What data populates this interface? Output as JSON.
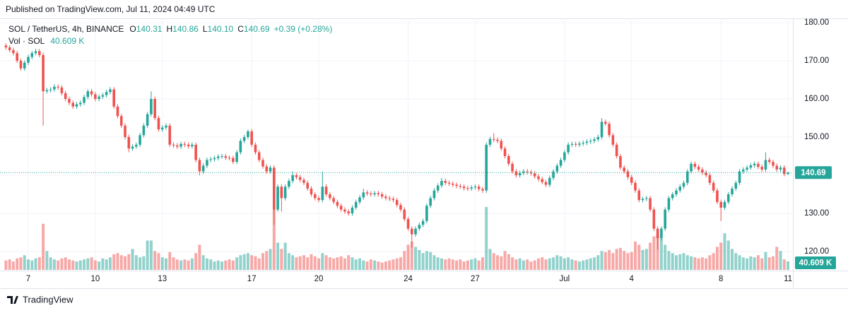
{
  "published": "Published on TradingView.com, Jul 11, 2024 04:49 UTC",
  "brand": "TradingView",
  "legend": {
    "symbol": "SOL / TetherUS, 4h, BINANCE",
    "keys": [
      "O",
      "H",
      "L",
      "C"
    ],
    "values": [
      "140.31",
      "140.86",
      "140.10",
      "140.69"
    ],
    "change": "+0.39 (+0.28%)",
    "volume_name": "Vol · SOL",
    "volume": "40.609 K"
  },
  "chart_data": {
    "type": "candlestick",
    "up_color": "#26a69a",
    "down_color": "#ef5350",
    "ylim": [
      115.19,
      181.11
    ],
    "yticks": [
      {
        "value": 120,
        "label": "120.00"
      },
      {
        "value": 130,
        "label": "130.00"
      },
      {
        "value": 140,
        "label": "140.00"
      },
      {
        "value": 150,
        "label": "150.00"
      },
      {
        "value": 160,
        "label": "160.00"
      },
      {
        "value": 170,
        "label": "170.00"
      },
      {
        "value": 180,
        "label": "180.00"
      }
    ],
    "xticks": [
      {
        "value": 6,
        "label": "7"
      },
      {
        "value": 24,
        "label": "10"
      },
      {
        "value": 42,
        "label": "13"
      },
      {
        "value": 66,
        "label": "17"
      },
      {
        "value": 84,
        "label": "20"
      },
      {
        "value": 108,
        "label": "24"
      },
      {
        "value": 126,
        "label": "27"
      },
      {
        "value": 150,
        "label": "Jul"
      },
      {
        "value": 168,
        "label": "4"
      },
      {
        "value": 192,
        "label": "8"
      },
      {
        "value": 210,
        "label": "11"
      }
    ],
    "grid": true,
    "vol_ylim": [
      0,
      1200
    ],
    "open": [
      174,
      173.5,
      172.8,
      172,
      170,
      168,
      169.5,
      171,
      172,
      172.5,
      171.5,
      162,
      162.3,
      162.5,
      163.2,
      163,
      161.5,
      160,
      159,
      158,
      158.6,
      159,
      160.5,
      162,
      161.2,
      160,
      160.6,
      161,
      161.8,
      162.5,
      158,
      155.5,
      153,
      150,
      147,
      147.5,
      148,
      150.5,
      153,
      156,
      160,
      155,
      152,
      152.5,
      153,
      148,
      147.8,
      147.5,
      148.2,
      148,
      147.6,
      148,
      144,
      141,
      142.5,
      144,
      144.2,
      144.5,
      144.9,
      145,
      144.6,
      144.5,
      143.5,
      146,
      149,
      150,
      151.5,
      148,
      146,
      144,
      142.3,
      141,
      142,
      131,
      137,
      134,
      137,
      138.5,
      140,
      139.5,
      138.8,
      138,
      136.5,
      135,
      134,
      133.5,
      137,
      135,
      134,
      133,
      132,
      131,
      130.5,
      130,
      131.5,
      133,
      134.2,
      135.5,
      135.2,
      135,
      135.3,
      135,
      134.4,
      134,
      133.8,
      133.5,
      132.2,
      131,
      128.5,
      126,
      124.5,
      126,
      127,
      128,
      132,
      134,
      136,
      137.3,
      138.5,
      138,
      137.8,
      137.5,
      137.2,
      137,
      136.6,
      136.5,
      136.8,
      137,
      136.4,
      136,
      148,
      149.5,
      149.3,
      149,
      147,
      145,
      143,
      141,
      140,
      140.6,
      141,
      140.8,
      140.5,
      139.7,
      139,
      138.2,
      137.5,
      139.3,
      141,
      142.5,
      144,
      146,
      148,
      148.2,
      148,
      148.3,
      148.5,
      148.8,
      149,
      149.4,
      150,
      154,
      153.5,
      150.5,
      148,
      145,
      142,
      141,
      139.5,
      138,
      136,
      133.5,
      133.8,
      134,
      131,
      126,
      123.5,
      126,
      131,
      134,
      135,
      136,
      137,
      138,
      141,
      143,
      142.2,
      141.5,
      140.7,
      140,
      138,
      136,
      133,
      131.5,
      133,
      135,
      136.5,
      138,
      141,
      141.5,
      142,
      142.6,
      143,
      142.2,
      141.5,
      144,
      143.5,
      142.5,
      141.5,
      142,
      140.31
    ],
    "high": [
      174.6,
      174.1,
      173.4,
      172.6,
      170.6,
      170.1,
      171.6,
      172.6,
      173.1,
      173.1,
      172.1,
      162.9,
      163.1,
      163.8,
      163.8,
      163.6,
      162.1,
      160.6,
      159.6,
      159.2,
      159.6,
      161.1,
      162.6,
      162.6,
      161.8,
      161.2,
      161.6,
      162.4,
      163.1,
      163.1,
      158.6,
      156.1,
      153.6,
      150.6,
      148.1,
      148.6,
      151.1,
      153.6,
      156.6,
      162,
      160.6,
      155.6,
      153.1,
      153.6,
      153.6,
      148.6,
      148.4,
      148.8,
      148.8,
      148.6,
      148.6,
      148.6,
      144.6,
      143.1,
      144.6,
      144.8,
      145.1,
      145.5,
      145.6,
      145.6,
      145.2,
      145.1,
      146.6,
      149.6,
      150.6,
      152,
      152.1,
      148.6,
      146.6,
      144.6,
      142.9,
      142.6,
      142.6,
      137.6,
      137.6,
      137.6,
      139.1,
      141,
      140.6,
      140.1,
      139.4,
      138.6,
      137.1,
      135.6,
      134.6,
      141,
      137.6,
      135.6,
      134.6,
      133.6,
      132.6,
      131.6,
      131.1,
      132.1,
      133.6,
      134.8,
      136.5,
      136.1,
      135.8,
      135.9,
      135.9,
      135.6,
      135,
      134.6,
      134.4,
      134.1,
      132.8,
      131.6,
      129.1,
      126.6,
      126.6,
      127.6,
      128.6,
      132.6,
      134.6,
      136.6,
      137.9,
      139.3,
      139.1,
      138.6,
      138.4,
      138.1,
      137.8,
      137.6,
      137.2,
      137.4,
      137.6,
      137.6,
      137,
      148.6,
      150.1,
      151,
      149.9,
      149.6,
      147.6,
      145.6,
      143.6,
      141.6,
      141.2,
      141.6,
      141.6,
      141.4,
      141.1,
      140.3,
      139.6,
      138.8,
      139.9,
      141.6,
      143.1,
      144.6,
      146.6,
      148.6,
      148.8,
      148.8,
      148.9,
      149.1,
      149.4,
      149.6,
      150,
      150.6,
      155,
      154.6,
      154.1,
      151.1,
      148.6,
      145.6,
      142.6,
      141.6,
      140.1,
      138.6,
      136.6,
      134.4,
      134.6,
      134.6,
      131.6,
      126.6,
      126.6,
      131.6,
      134.6,
      135.6,
      136.6,
      137.6,
      138.6,
      141.6,
      143.6,
      143.6,
      142.8,
      142.1,
      141.3,
      140.6,
      138.6,
      136.6,
      133.6,
      133.6,
      135.6,
      137.1,
      138.6,
      141.6,
      142.1,
      142.6,
      143.2,
      143.6,
      143.6,
      142.8,
      146,
      144.6,
      144.1,
      143.1,
      142.6,
      142.6,
      140.86
    ],
    "low": [
      172.9,
      172.2,
      171.4,
      169.4,
      167.4,
      167.4,
      168.9,
      170.4,
      171.4,
      170.9,
      153,
      161.4,
      161.7,
      161.9,
      162.4,
      160.9,
      159.4,
      158.4,
      157.4,
      157.4,
      158,
      158.4,
      159.9,
      160.6,
      159.4,
      159.4,
      160,
      160.4,
      161.2,
      157.4,
      154.9,
      152.4,
      149.4,
      146,
      146.4,
      146.9,
      147.4,
      149.9,
      152.4,
      155.4,
      154.4,
      151.4,
      151.4,
      151.9,
      147.4,
      147.2,
      146.9,
      146.9,
      147.4,
      147,
      147,
      143.4,
      140,
      140.4,
      141.9,
      143.4,
      143.6,
      143.9,
      144.3,
      144,
      143.9,
      142.9,
      142.9,
      145.4,
      148.4,
      149.4,
      147.4,
      145.4,
      143.4,
      141.7,
      140.4,
      140.4,
      127,
      130.4,
      130.5,
      133.4,
      136.4,
      137.9,
      138.9,
      138.2,
      137.4,
      135.9,
      134.4,
      133.4,
      132.9,
      132.9,
      134.4,
      133.4,
      132.4,
      131.4,
      130.4,
      129.9,
      129.4,
      129.4,
      130.9,
      132.4,
      133.6,
      134.6,
      134.4,
      134.4,
      134.4,
      133.8,
      133.4,
      133.2,
      132.9,
      131.6,
      130.4,
      127.9,
      125.4,
      121,
      123.9,
      125.4,
      126.4,
      127.4,
      131.4,
      133.4,
      135.4,
      136.7,
      137.4,
      137.2,
      136.9,
      136.6,
      136.4,
      136,
      135.9,
      135.9,
      136.2,
      135.8,
      135.4,
      135.4,
      147.4,
      148.7,
      148.4,
      146.4,
      144.4,
      142.4,
      140.4,
      139.4,
      139.4,
      140,
      140.2,
      139.9,
      139.1,
      138.4,
      137.6,
      136.9,
      136.9,
      138.7,
      140.4,
      141.9,
      143.4,
      145.4,
      147.4,
      147.4,
      147.4,
      147.7,
      147.9,
      148.2,
      148.4,
      148.8,
      149.4,
      152.9,
      149.9,
      147.4,
      144.4,
      141.4,
      140.4,
      138.9,
      137.4,
      135.4,
      132.9,
      132.9,
      133.2,
      130.4,
      125.4,
      120.5,
      122.9,
      125.4,
      130.4,
      133.4,
      134.4,
      135.4,
      136.4,
      137.4,
      140.4,
      141.6,
      140.9,
      140.1,
      139.4,
      137.4,
      135.4,
      132.4,
      128,
      130.9,
      132.4,
      134.4,
      135.9,
      137.4,
      140.4,
      140.9,
      141.4,
      142,
      141.6,
      140.9,
      140.9,
      142.9,
      141.9,
      140.9,
      140.9,
      139.7,
      140.1
    ],
    "close": [
      173.5,
      172.8,
      172,
      170,
      168,
      169.5,
      171,
      172,
      172.5,
      171.5,
      162,
      162.3,
      162.5,
      163.2,
      163,
      161.5,
      160,
      159,
      158,
      158.6,
      159,
      160.5,
      162,
      161.2,
      160,
      160.6,
      161,
      161.8,
      162.5,
      158,
      155.5,
      153,
      150,
      147,
      147.5,
      148,
      150.5,
      153,
      156,
      160,
      155,
      152,
      152.5,
      153,
      148,
      147.8,
      147.5,
      148.2,
      148,
      147.6,
      148,
      144,
      141,
      142.5,
      144,
      144.2,
      144.5,
      144.9,
      145,
      144.6,
      144.5,
      143.5,
      146,
      149,
      150,
      151.5,
      148,
      146,
      144,
      142.3,
      141,
      142,
      131,
      137,
      134,
      137,
      138.5,
      140,
      139.5,
      138.8,
      138,
      136.5,
      135,
      134,
      133.5,
      137,
      135,
      134,
      133,
      132,
      131,
      130.5,
      130,
      131.5,
      133,
      134.2,
      135.5,
      135.2,
      135,
      135.3,
      135,
      134.4,
      134,
      133.8,
      133.5,
      132.2,
      131,
      128.5,
      126,
      124.5,
      126,
      127,
      128,
      132,
      134,
      136,
      137.3,
      138.5,
      138,
      137.8,
      137.5,
      137.2,
      137,
      136.6,
      136.5,
      136.8,
      137,
      136.4,
      136,
      148,
      149.5,
      149.3,
      149,
      147,
      145,
      143,
      141,
      140,
      140.6,
      141,
      140.8,
      140.5,
      139.7,
      139,
      138.2,
      137.5,
      139.3,
      141,
      142.5,
      144,
      146,
      148,
      148.2,
      148,
      148.3,
      148.5,
      148.8,
      149,
      149.4,
      150,
      154,
      153.5,
      150.5,
      148,
      145,
      142,
      141,
      139.5,
      138,
      136,
      133.5,
      133.8,
      134,
      131,
      126,
      123.5,
      126,
      131,
      134,
      135,
      136,
      137,
      138,
      141,
      143,
      142.2,
      141.5,
      140.7,
      140,
      138,
      136,
      133,
      131.5,
      133,
      135,
      136.5,
      138,
      141,
      141.5,
      142,
      142.6,
      143,
      142.2,
      141.5,
      144,
      143.5,
      142.5,
      141.5,
      142,
      140.31,
      140.69
    ],
    "volume": [
      45,
      50,
      40,
      55,
      60,
      70,
      50,
      45,
      55,
      60,
      220,
      90,
      60,
      50,
      45,
      55,
      60,
      50,
      45,
      40,
      45,
      50,
      55,
      60,
      45,
      40,
      55,
      50,
      60,
      75,
      80,
      70,
      65,
      75,
      100,
      70,
      60,
      65,
      140,
      140,
      90,
      80,
      60,
      55,
      85,
      60,
      50,
      45,
      50,
      45,
      55,
      80,
      120,
      70,
      55,
      50,
      40,
      45,
      40,
      45,
      50,
      45,
      60,
      70,
      75,
      80,
      70,
      65,
      55,
      80,
      90,
      100,
      290,
      130,
      100,
      130,
      80,
      70,
      60,
      65,
      70,
      60,
      75,
      65,
      55,
      80,
      70,
      60,
      55,
      60,
      65,
      55,
      70,
      60,
      50,
      55,
      45,
      40,
      50,
      45,
      40,
      35,
      40,
      45,
      50,
      55,
      60,
      90,
      120,
      135,
      110,
      95,
      80,
      90,
      85,
      70,
      60,
      55,
      50,
      55,
      50,
      45,
      50,
      40,
      45,
      50,
      55,
      45,
      60,
      300,
      100,
      80,
      70,
      65,
      90,
      75,
      60,
      50,
      55,
      45,
      50,
      40,
      45,
      55,
      60,
      50,
      55,
      60,
      70,
      65,
      55,
      60,
      50,
      45,
      40,
      45,
      50,
      55,
      60,
      70,
      90,
      85,
      95,
      80,
      100,
      105,
      90,
      80,
      85,
      135,
      120,
      95,
      100,
      130,
      160,
      165,
      150,
      120,
      90,
      80,
      70,
      75,
      80,
      70,
      65,
      60,
      55,
      60,
      55,
      70,
      80,
      110,
      130,
      175,
      140,
      100,
      80,
      70,
      60,
      55,
      65,
      60,
      70,
      55,
      85,
      60,
      65,
      110,
      90,
      50,
      40.609
    ]
  }
}
